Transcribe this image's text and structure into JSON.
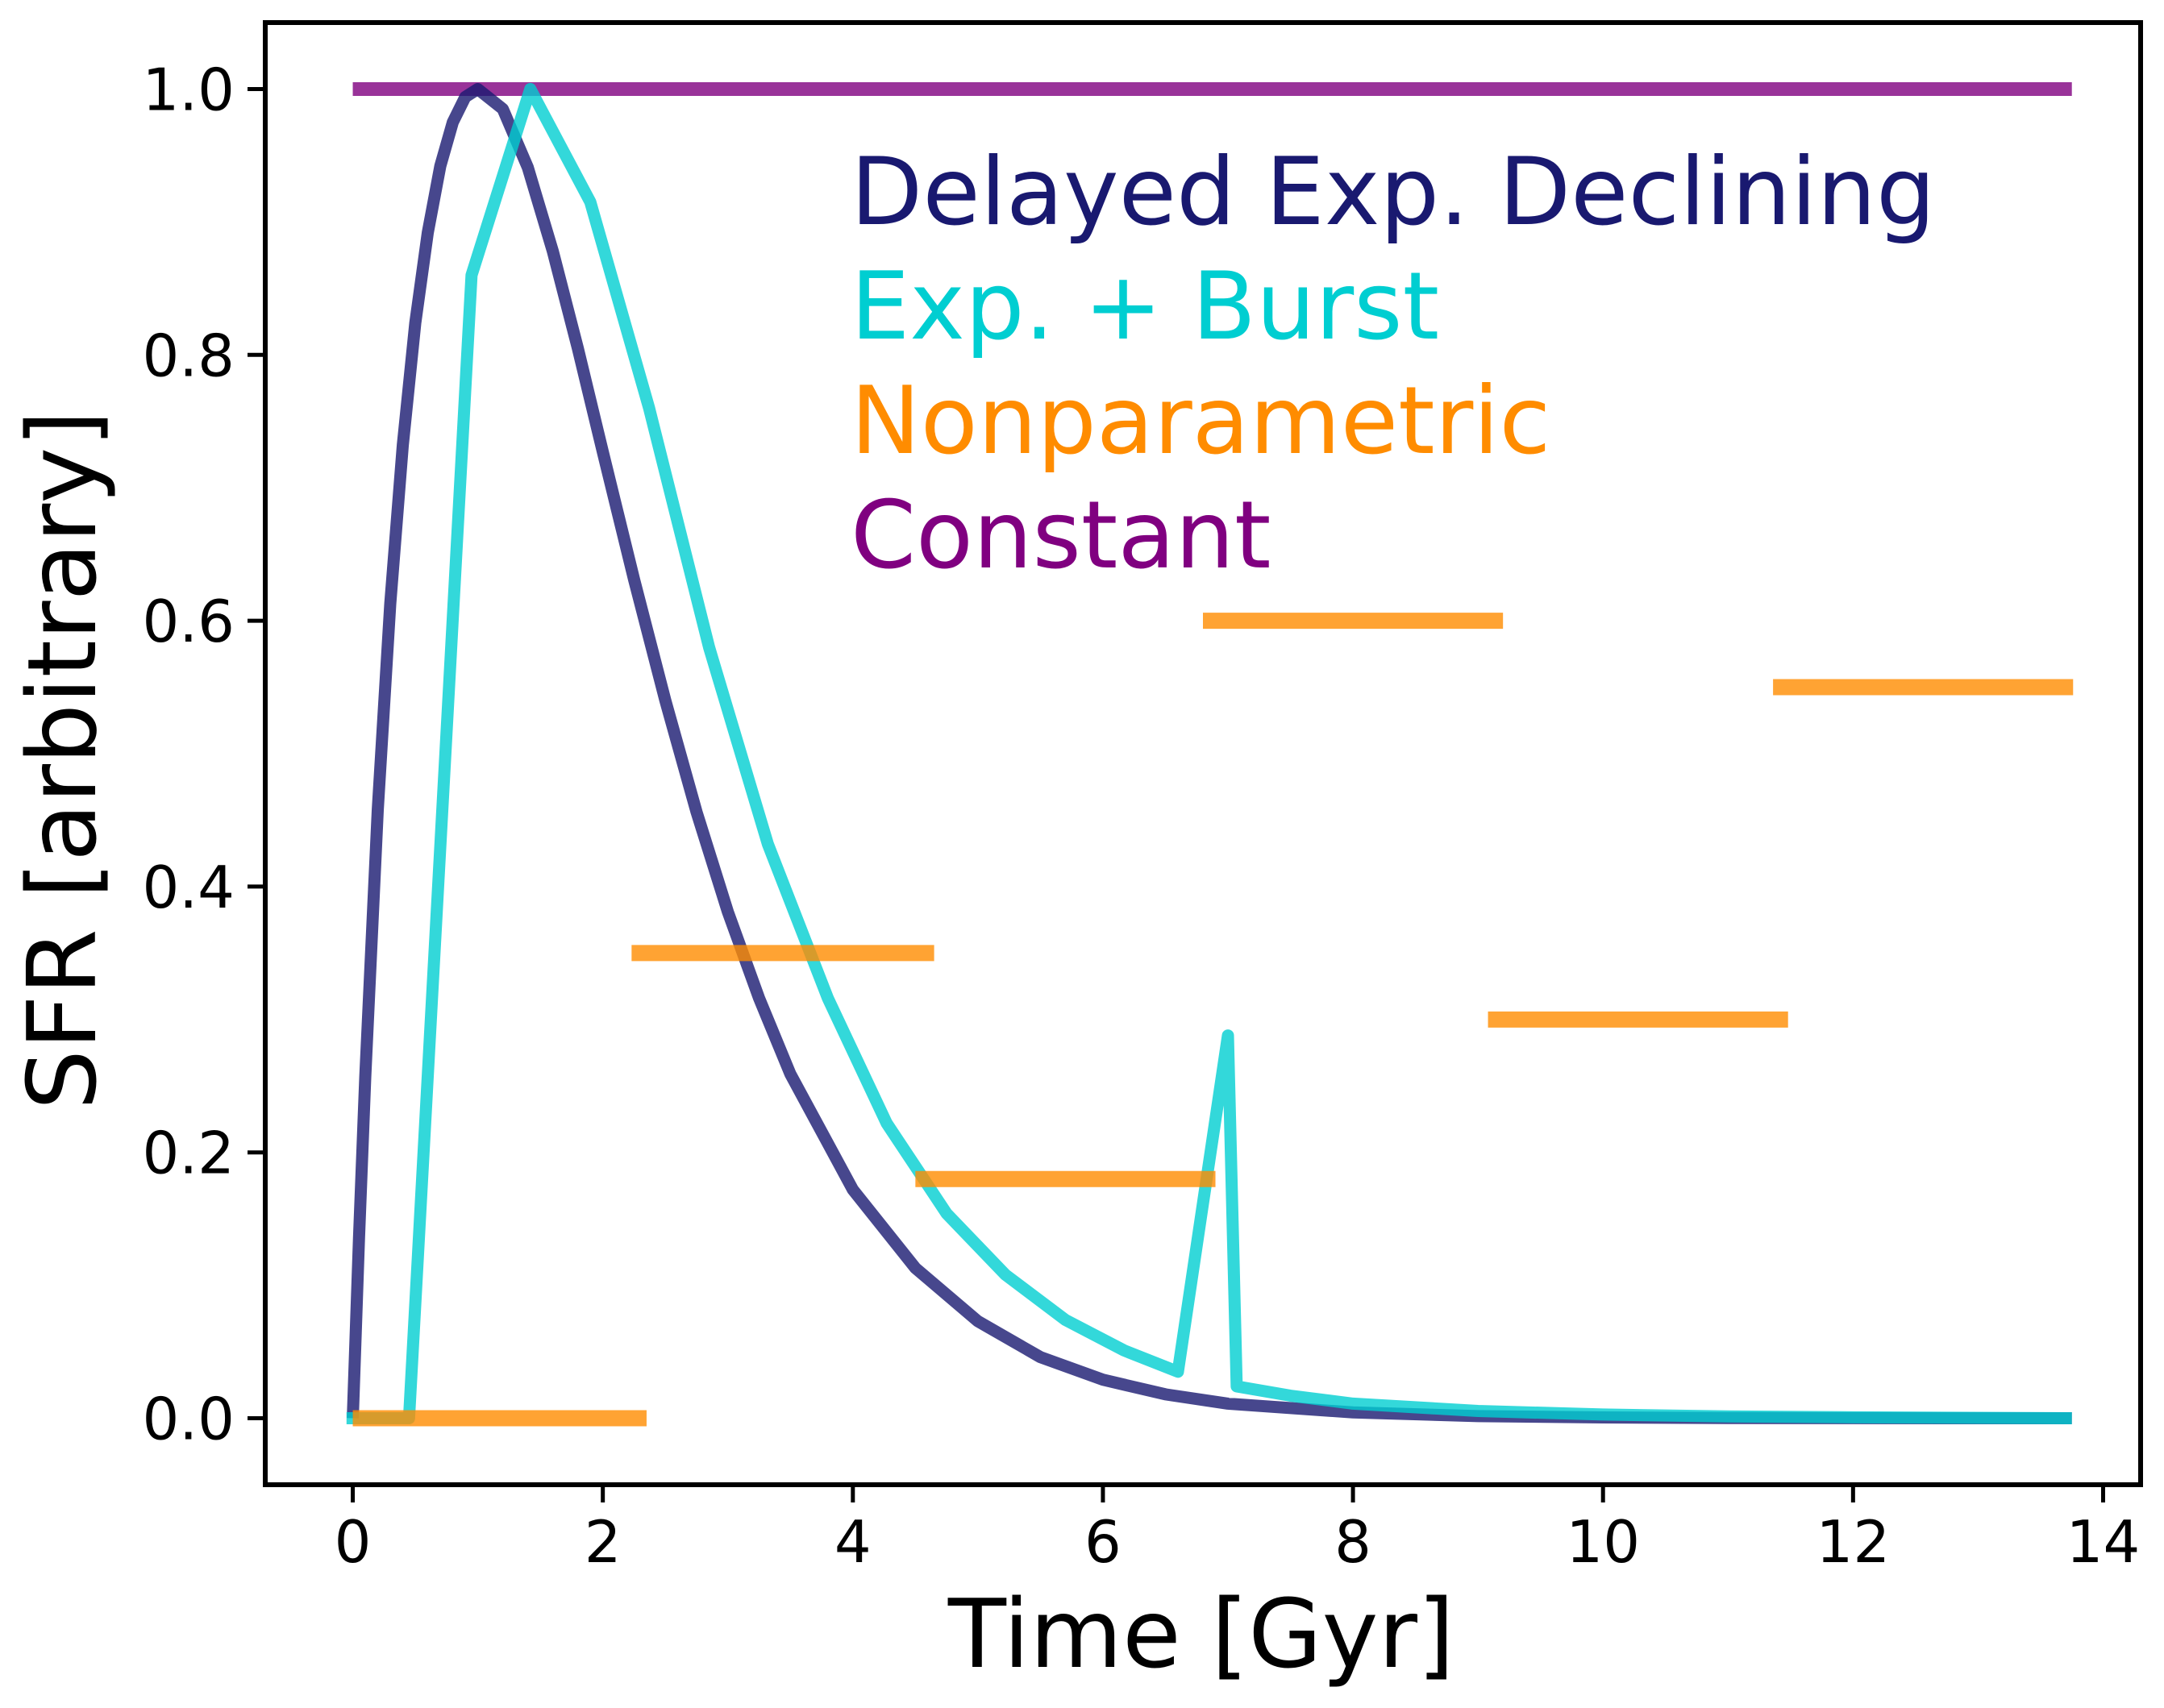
{
  "chart_data": {
    "type": "line",
    "title": "",
    "xlabel": "Time [Gyr]",
    "ylabel": "SFR [arbitrary]",
    "xlim": [
      -0.7,
      14.3
    ],
    "ylim": [
      -0.05,
      1.05
    ],
    "xticks": [
      0,
      2,
      4,
      6,
      8,
      10,
      12,
      14
    ],
    "yticks": [
      0.0,
      0.2,
      0.4,
      0.6,
      0.8,
      1.0
    ],
    "xtick_labels": [
      "0",
      "2",
      "4",
      "6",
      "8",
      "10",
      "12",
      "14"
    ],
    "ytick_labels": [
      "0.0",
      "0.2",
      "0.4",
      "0.6",
      "0.8",
      "1.0"
    ],
    "grid": false,
    "legend_placement": "upper-center-right",
    "series": [
      {
        "name": "Constant",
        "color": "#800080",
        "style": "line",
        "x": [
          0,
          13.75
        ],
        "y": [
          1.0,
          1.0
        ]
      },
      {
        "name": "Delayed Exp. Declining",
        "color": "#191970",
        "style": "line",
        "x": [
          0,
          0.05,
          0.1,
          0.2,
          0.3,
          0.4,
          0.5,
          0.6,
          0.7,
          0.8,
          0.9,
          1.0,
          1.2,
          1.4,
          1.6,
          1.8,
          2.0,
          2.25,
          2.5,
          2.75,
          3.0,
          3.25,
          3.5,
          4.0,
          4.5,
          5.0,
          5.5,
          6.0,
          6.5,
          7.0,
          8.0,
          9.0,
          10.0,
          11.0,
          12.0,
          13.75
        ],
        "y": [
          0.0,
          0.136,
          0.257,
          0.458,
          0.613,
          0.732,
          0.824,
          0.892,
          0.942,
          0.975,
          0.994,
          1.0,
          0.985,
          0.941,
          0.878,
          0.805,
          0.727,
          0.631,
          0.54,
          0.456,
          0.381,
          0.316,
          0.259,
          0.172,
          0.113,
          0.073,
          0.046,
          0.029,
          0.018,
          0.011,
          0.0044,
          0.0016,
          0.0006,
          0.0002,
          0.0001,
          0.0
        ],
        "zero_before_start": true
      },
      {
        "name": "Exp. + Burst",
        "color": "#00CED1",
        "style": "line",
        "x": [
          -0.05,
          0.45,
          0.95,
          1.42,
          1.9,
          2.37,
          2.85,
          3.32,
          3.8,
          4.27,
          4.75,
          5.22,
          5.7,
          6.17,
          6.6,
          7.0,
          7.07,
          7.5,
          8.0,
          9.0,
          10.0,
          11.0,
          12.0,
          13.75
        ],
        "y": [
          0.0,
          0.0,
          0.86,
          1.0,
          0.915,
          0.76,
          0.58,
          0.432,
          0.316,
          0.222,
          0.154,
          0.108,
          0.074,
          0.051,
          0.035,
          0.288,
          0.024,
          0.017,
          0.011,
          0.0055,
          0.0028,
          0.0014,
          0.0007,
          0.0
        ]
      },
      {
        "name": "Nonparametric",
        "color": "#FF8C00",
        "style": "steps",
        "segments": [
          {
            "x": [
              0,
              2.35
            ],
            "y": 0.0
          },
          {
            "x": [
              2.23,
              4.65
            ],
            "y": 0.35
          },
          {
            "x": [
              4.5,
              6.9
            ],
            "y": 0.18
          },
          {
            "x": [
              6.8,
              9.2
            ],
            "y": 0.6
          },
          {
            "x": [
              9.08,
              11.48
            ],
            "y": 0.3
          },
          {
            "x": [
              11.36,
              13.76
            ],
            "y": 0.55
          }
        ]
      }
    ],
    "legend": [
      {
        "label": "Delayed Exp. Declining",
        "color": "#191970"
      },
      {
        "label": "Exp. + Burst",
        "color": "#00CED1"
      },
      {
        "label": "Nonparametric",
        "color": "#FF8C00"
      },
      {
        "label": "Constant",
        "color": "#800080"
      }
    ]
  }
}
